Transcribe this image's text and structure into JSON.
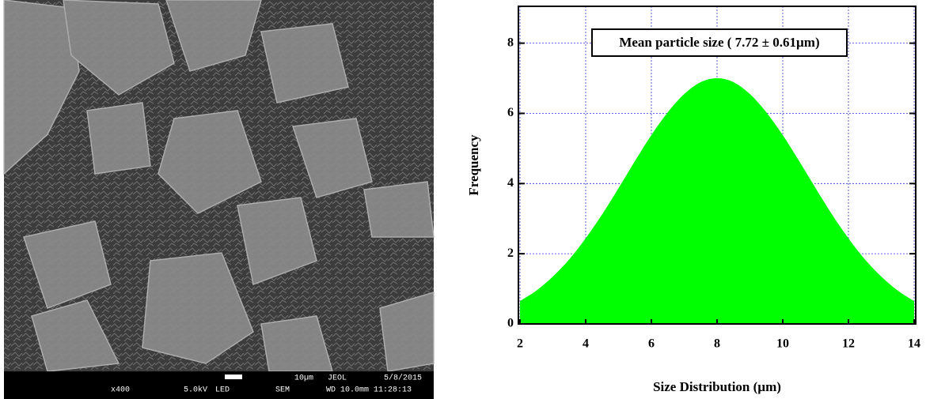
{
  "image": {
    "scale_bar": "10µm",
    "maker": "JEOL",
    "date": "5/8/2015",
    "magnification": "x400",
    "voltage": "5.0kV",
    "detector": "LED",
    "mode": "SEM",
    "working_distance": "WD 10.0mm 11:28:13"
  },
  "chart_data": {
    "type": "area",
    "annotation": "Mean particle size ( 7.72 ± 0.61µm)",
    "xlabel": "Size Distribution (µm)",
    "ylabel": "Frequency",
    "x": [
      2,
      2.5,
      3,
      3.5,
      4,
      4.5,
      5,
      5.5,
      6,
      6.5,
      7,
      7.5,
      8,
      8.5,
      9,
      9.5,
      10,
      10.5,
      11,
      11.5,
      12,
      12.5,
      13,
      13.5,
      14
    ],
    "values": [
      0.65,
      0.95,
      1.35,
      1.84,
      2.44,
      3.12,
      3.87,
      4.64,
      5.38,
      6.03,
      6.55,
      6.89,
      7.0,
      6.89,
      6.55,
      6.03,
      5.38,
      4.64,
      3.87,
      3.12,
      2.44,
      1.84,
      1.35,
      0.95,
      0.65
    ],
    "color": "#00ff00",
    "xlim": [
      2,
      14
    ],
    "ylim": [
      0,
      9.05
    ],
    "xticks": [
      2,
      4,
      6,
      8,
      10,
      12,
      14
    ],
    "yticks": [
      0,
      2,
      4,
      6,
      8
    ],
    "grid": true
  }
}
